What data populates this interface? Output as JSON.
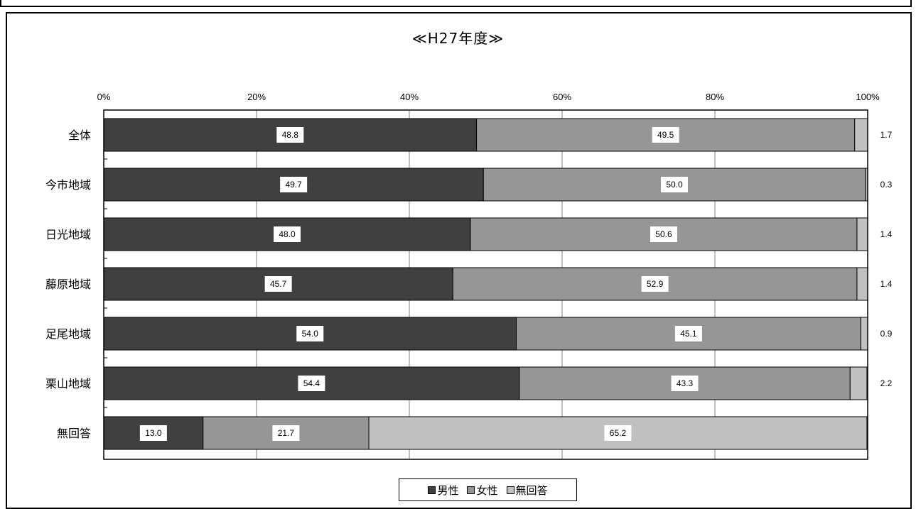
{
  "chart_data": {
    "type": "bar",
    "orientation": "horizontal",
    "stacked": "percent",
    "title": "≪H27年度≫",
    "xlim": [
      0,
      100
    ],
    "x_ticks": [
      "0%",
      "20%",
      "40%",
      "60%",
      "80%",
      "100%"
    ],
    "categories": [
      "全体",
      "今市地域",
      "日光地域",
      "藤原地域",
      "足尾地域",
      "栗山地域",
      "無回答"
    ],
    "series": [
      {
        "name": "男性",
        "color": "#404040",
        "values": [
          48.8,
          49.7,
          48.0,
          45.7,
          54.0,
          54.4,
          13.0
        ]
      },
      {
        "name": "女性",
        "color": "#969696",
        "values": [
          49.5,
          50.0,
          50.6,
          52.9,
          45.1,
          43.3,
          21.7
        ]
      },
      {
        "name": "無回答",
        "color": "#c0c0c0",
        "values": [
          1.7,
          0.3,
          1.4,
          1.4,
          0.9,
          2.2,
          65.2
        ]
      }
    ],
    "legend": {
      "position": "bottom",
      "entries": [
        "■男性",
        "■女性",
        "□無回答"
      ]
    },
    "grid": true
  }
}
